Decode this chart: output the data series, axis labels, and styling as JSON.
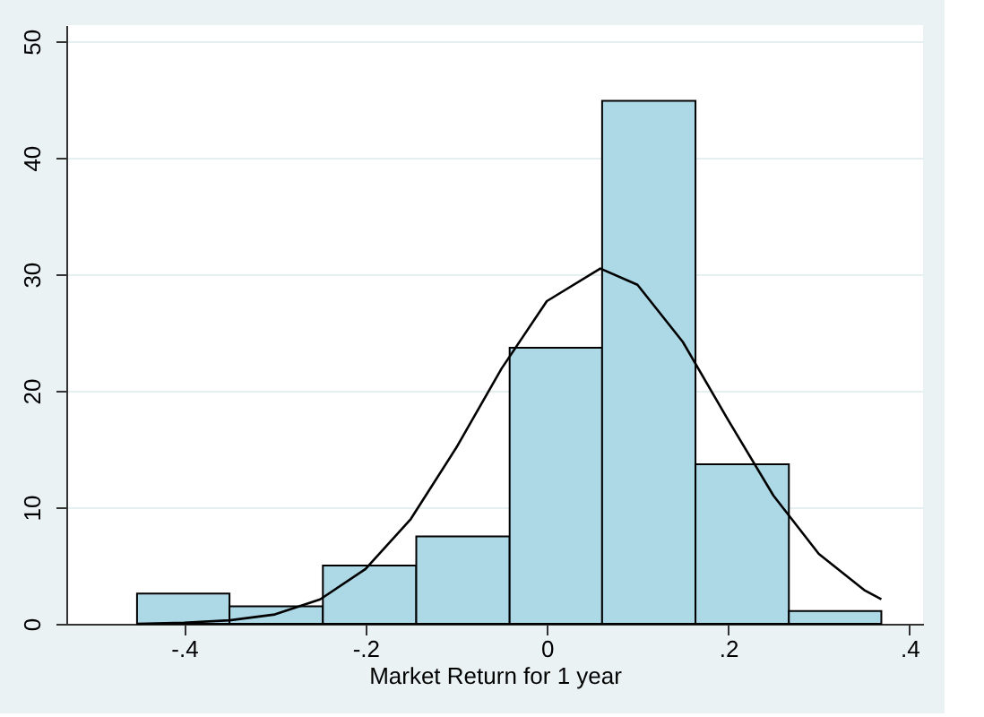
{
  "chart_data": {
    "type": "histogram",
    "xlabel": "Market Return for 1 year",
    "bins": [
      -0.452,
      -0.35,
      -0.247,
      -0.144,
      -0.041,
      0.061,
      0.164,
      0.267,
      0.369
    ],
    "series": [
      {
        "color": "#add8e6",
        "values": [
          2.6,
          1.5,
          5.0,
          7.5,
          23.7,
          44.9,
          13.7,
          1.1
        ]
      },
      {
        "type": "line",
        "color": "#000000",
        "x": [
          -0.452,
          -0.4,
          -0.35,
          -0.3,
          -0.25,
          -0.2,
          -0.15,
          -0.1,
          -0.05,
          0,
          0.059,
          0.1,
          0.15,
          0.2,
          0.25,
          0.3,
          0.35,
          0.369
        ],
        "values": [
          0.0,
          0.1,
          0.3,
          0.8,
          2.1,
          4.7,
          9.0,
          15.1,
          21.9,
          27.7,
          30.5,
          29.1,
          24.2,
          17.5,
          11.0,
          6.0,
          2.9,
          2.1
        ]
      }
    ],
    "xlim": [
      -0.53,
      0.415
    ],
    "ylim": [
      0,
      51.4
    ],
    "xticks": [
      {
        "value": -0.4,
        "label": "-.4"
      },
      {
        "value": -0.2,
        "label": "-.2"
      },
      0,
      {
        "value": 0.2,
        "label": ".2"
      },
      {
        "value": 0.4,
        "label": ".4"
      }
    ],
    "yticks": [
      0,
      10,
      20,
      30,
      40,
      50
    ],
    "grid": "y"
  }
}
